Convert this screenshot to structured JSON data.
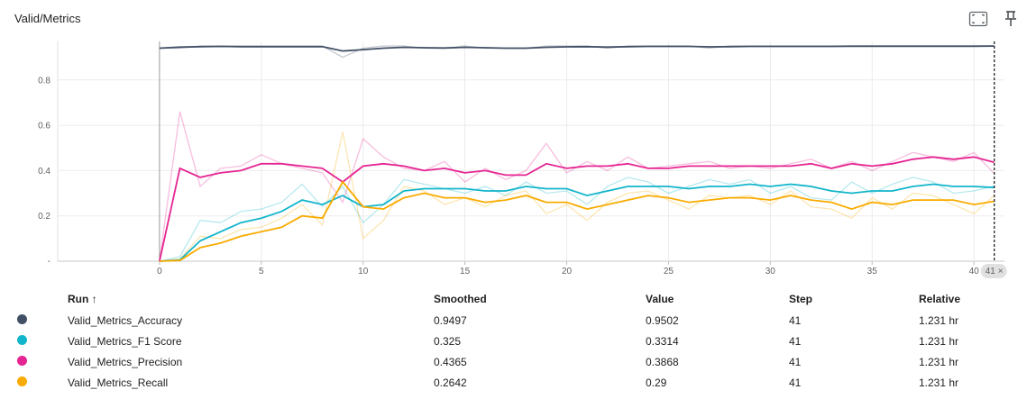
{
  "header": {
    "title": "Valid/Metrics",
    "fit_icon": "fit-to-domain-icon",
    "pin_icon": "pin-icon"
  },
  "cursor": {
    "step_label": "41",
    "close_glyph": "×"
  },
  "table": {
    "headers": {
      "run": "Run ↑",
      "smoothed": "Smoothed",
      "value": "Value",
      "step": "Step",
      "relative": "Relative"
    },
    "rows": [
      {
        "color": "#425066",
        "run": "Valid_Metrics_Accuracy",
        "smoothed": "0.9497",
        "value": "0.9502",
        "step": "41",
        "relative": "1.231 hr"
      },
      {
        "color": "#12b5cb",
        "run": "Valid_Metrics_F1 Score",
        "smoothed": "0.325",
        "value": "0.3314",
        "step": "41",
        "relative": "1.231 hr"
      },
      {
        "color": "#e52592",
        "run": "Valid_Metrics_Precision",
        "smoothed": "0.4365",
        "value": "0.3868",
        "step": "41",
        "relative": "1.231 hr"
      },
      {
        "color": "#f9ab00",
        "run": "Valid_Metrics_Recall",
        "smoothed": "0.2642",
        "value": "0.29",
        "step": "41",
        "relative": "1.231 hr"
      }
    ]
  },
  "chart_data": {
    "type": "line",
    "title": "Valid/Metrics",
    "xlabel": "",
    "ylabel": "",
    "xlim": [
      -5,
      41.5
    ],
    "ylim": [
      0,
      0.97
    ],
    "x_ticks": [
      0,
      5,
      10,
      15,
      20,
      25,
      30,
      35,
      40
    ],
    "y_ticks": [
      0.2,
      0.4,
      0.6,
      0.8
    ],
    "x": [
      0,
      1,
      2,
      3,
      4,
      5,
      6,
      7,
      8,
      9,
      10,
      11,
      12,
      13,
      14,
      15,
      16,
      17,
      18,
      19,
      20,
      21,
      22,
      23,
      24,
      25,
      26,
      27,
      28,
      29,
      30,
      31,
      32,
      33,
      34,
      35,
      36,
      37,
      38,
      39,
      40,
      41
    ],
    "series": [
      {
        "name": "Valid_Metrics_Accuracy",
        "color": "#425066",
        "raw": [
          0.94,
          0.94,
          0.95,
          0.95,
          0.95,
          0.95,
          0.95,
          0.95,
          0.95,
          0.9,
          0.94,
          0.95,
          0.95,
          0.94,
          0.94,
          0.95,
          0.94,
          0.94,
          0.94,
          0.95,
          0.95,
          0.95,
          0.94,
          0.95,
          0.95,
          0.95,
          0.95,
          0.94,
          0.95,
          0.95,
          0.95,
          0.95,
          0.95,
          0.95,
          0.95,
          0.95,
          0.95,
          0.95,
          0.95,
          0.95,
          0.95,
          0.9502
        ],
        "smoothed": [
          0.94,
          0.945,
          0.947,
          0.948,
          0.947,
          0.947,
          0.947,
          0.947,
          0.947,
          0.928,
          0.934,
          0.94,
          0.944,
          0.942,
          0.941,
          0.944,
          0.942,
          0.94,
          0.94,
          0.944,
          0.946,
          0.947,
          0.945,
          0.947,
          0.948,
          0.948,
          0.948,
          0.946,
          0.947,
          0.948,
          0.948,
          0.948,
          0.948,
          0.948,
          0.949,
          0.949,
          0.949,
          0.949,
          0.949,
          0.949,
          0.949,
          0.9497
        ]
      },
      {
        "name": "Valid_Metrics_F1 Score",
        "color": "#12b5cb",
        "raw": [
          0,
          0.02,
          0.18,
          0.17,
          0.22,
          0.23,
          0.26,
          0.34,
          0.24,
          0.33,
          0.17,
          0.25,
          0.36,
          0.34,
          0.32,
          0.3,
          0.33,
          0.29,
          0.35,
          0.3,
          0.31,
          0.25,
          0.33,
          0.37,
          0.35,
          0.3,
          0.33,
          0.36,
          0.34,
          0.36,
          0.3,
          0.33,
          0.28,
          0.27,
          0.35,
          0.3,
          0.34,
          0.37,
          0.35,
          0.3,
          0.31,
          0.3314
        ],
        "smoothed": [
          0,
          0.005,
          0.09,
          0.13,
          0.17,
          0.19,
          0.22,
          0.27,
          0.25,
          0.29,
          0.24,
          0.25,
          0.31,
          0.32,
          0.32,
          0.32,
          0.31,
          0.31,
          0.33,
          0.32,
          0.32,
          0.29,
          0.31,
          0.33,
          0.33,
          0.33,
          0.32,
          0.33,
          0.33,
          0.34,
          0.33,
          0.34,
          0.33,
          0.31,
          0.3,
          0.31,
          0.31,
          0.33,
          0.34,
          0.33,
          0.33,
          0.325
        ]
      },
      {
        "name": "Valid_Metrics_Precision",
        "color": "#e52592",
        "raw": [
          0,
          0.66,
          0.33,
          0.41,
          0.42,
          0.47,
          0.43,
          0.41,
          0.39,
          0.26,
          0.54,
          0.46,
          0.41,
          0.4,
          0.44,
          0.35,
          0.41,
          0.36,
          0.4,
          0.52,
          0.39,
          0.44,
          0.4,
          0.46,
          0.41,
          0.42,
          0.43,
          0.44,
          0.41,
          0.42,
          0.41,
          0.43,
          0.45,
          0.41,
          0.44,
          0.4,
          0.44,
          0.48,
          0.46,
          0.44,
          0.48,
          0.3868
        ],
        "smoothed": [
          0,
          0.41,
          0.37,
          0.39,
          0.4,
          0.43,
          0.43,
          0.42,
          0.41,
          0.35,
          0.42,
          0.43,
          0.42,
          0.4,
          0.41,
          0.39,
          0.4,
          0.38,
          0.38,
          0.43,
          0.41,
          0.42,
          0.42,
          0.43,
          0.41,
          0.41,
          0.42,
          0.42,
          0.42,
          0.42,
          0.42,
          0.42,
          0.43,
          0.41,
          0.43,
          0.42,
          0.43,
          0.45,
          0.46,
          0.45,
          0.46,
          0.4365
        ]
      },
      {
        "name": "Valid_Metrics_Recall",
        "color": "#f9ab00",
        "raw": [
          0,
          0.01,
          0.11,
          0.1,
          0.14,
          0.15,
          0.19,
          0.25,
          0.16,
          0.57,
          0.1,
          0.18,
          0.33,
          0.31,
          0.25,
          0.28,
          0.24,
          0.29,
          0.31,
          0.21,
          0.25,
          0.18,
          0.26,
          0.3,
          0.31,
          0.27,
          0.23,
          0.29,
          0.28,
          0.29,
          0.25,
          0.31,
          0.24,
          0.23,
          0.19,
          0.28,
          0.23,
          0.3,
          0.29,
          0.25,
          0.21,
          0.29
        ],
        "smoothed": [
          0,
          0.003,
          0.06,
          0.08,
          0.11,
          0.13,
          0.15,
          0.2,
          0.19,
          0.35,
          0.24,
          0.23,
          0.28,
          0.3,
          0.28,
          0.28,
          0.26,
          0.27,
          0.29,
          0.26,
          0.26,
          0.23,
          0.25,
          0.27,
          0.29,
          0.28,
          0.26,
          0.27,
          0.28,
          0.28,
          0.27,
          0.29,
          0.27,
          0.26,
          0.23,
          0.26,
          0.25,
          0.27,
          0.27,
          0.27,
          0.25,
          0.2642
        ]
      }
    ]
  }
}
